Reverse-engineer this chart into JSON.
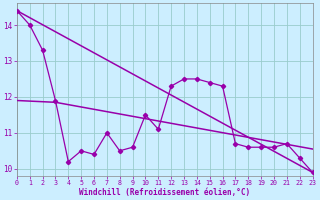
{
  "x": [
    0,
    1,
    2,
    3,
    4,
    5,
    6,
    7,
    8,
    9,
    10,
    11,
    12,
    13,
    14,
    15,
    16,
    17,
    18,
    19,
    20,
    21,
    22,
    23
  ],
  "line1": [
    14.4,
    14.0,
    13.3,
    11.9,
    10.2,
    10.5,
    10.4,
    11.0,
    10.5,
    10.6,
    11.5,
    11.1,
    12.3,
    12.5,
    12.5,
    12.4,
    12.3,
    10.7,
    10.6,
    10.6,
    10.6,
    10.7,
    10.3,
    9.9
  ],
  "trend1_x": [
    0,
    23
  ],
  "trend1_y": [
    14.4,
    9.9
  ],
  "trend2_x": [
    0,
    3,
    23
  ],
  "trend2_y": [
    11.9,
    11.85,
    10.55
  ],
  "xlim": [
    0,
    23
  ],
  "ylim": [
    9.8,
    14.6
  ],
  "yticks": [
    10,
    11,
    12,
    13,
    14
  ],
  "xticks": [
    0,
    1,
    2,
    3,
    4,
    5,
    6,
    7,
    8,
    9,
    10,
    11,
    12,
    13,
    14,
    15,
    16,
    17,
    18,
    19,
    20,
    21,
    22,
    23
  ],
  "xlabel": "Windchill (Refroidissement éolien,°C)",
  "line_color": "#9900aa",
  "bg_color": "#cceeff",
  "grid_color": "#99cccc"
}
